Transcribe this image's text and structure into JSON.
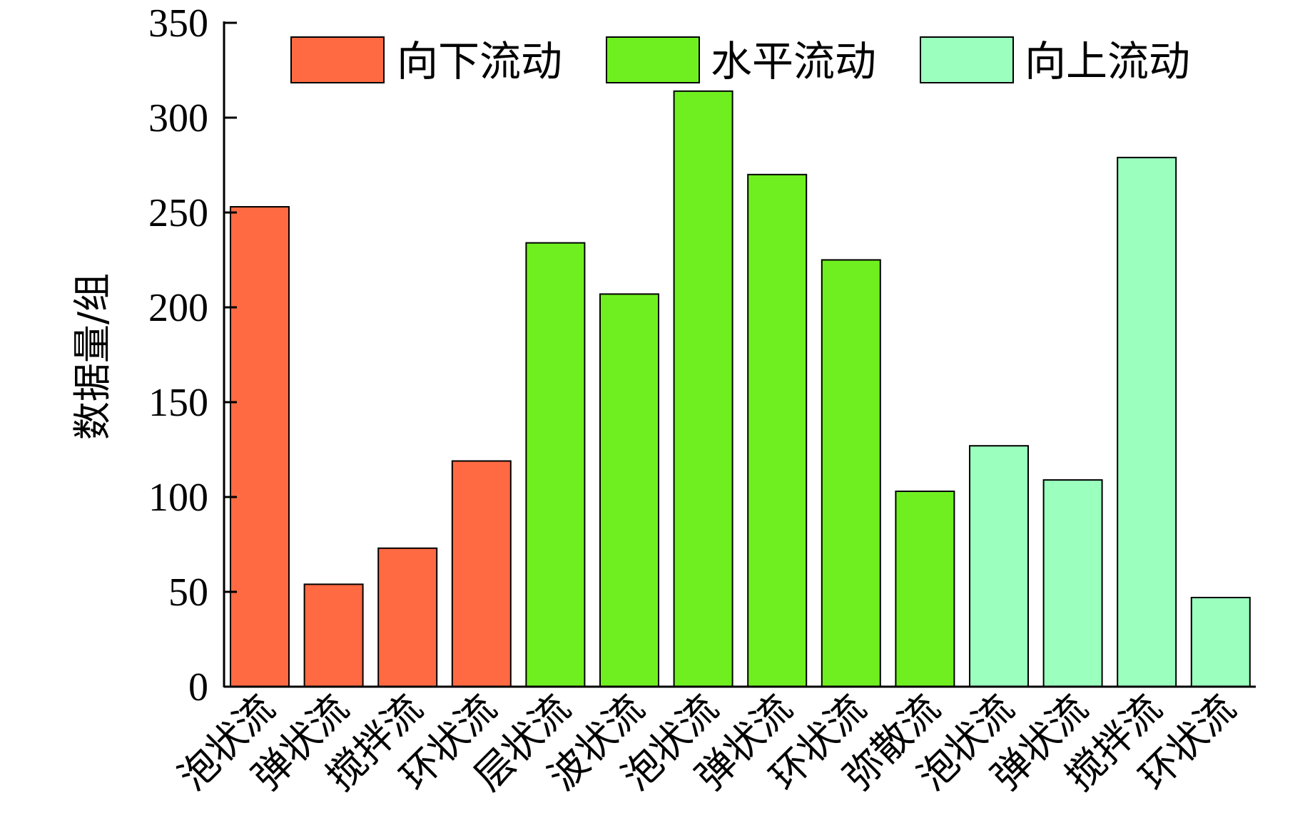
{
  "chart_data": {
    "type": "bar",
    "ylabel": "数据量/组",
    "xlabel": "",
    "ylim": [
      0,
      350
    ],
    "yticks": [
      0,
      50,
      100,
      150,
      200,
      250,
      300,
      350
    ],
    "grid": false,
    "legend_position": "top",
    "groups": [
      {
        "name": "向下流动",
        "color": "#ff6a42",
        "categories": [
          "泡状流",
          "弹状流",
          "搅拌流",
          "环状流"
        ],
        "values": [
          253,
          54,
          73,
          119
        ]
      },
      {
        "name": "水平流动",
        "color": "#6fef20",
        "categories": [
          "层状流",
          "波状流",
          "泡状流",
          "弹状流",
          "环状流",
          "弥散流"
        ],
        "values": [
          234,
          207,
          314,
          270,
          225,
          103
        ]
      },
      {
        "name": "向上流动",
        "color": "#9bffbe",
        "categories": [
          "泡状流",
          "弹状流",
          "搅拌流",
          "环状流"
        ],
        "values": [
          127,
          109,
          279,
          47
        ]
      }
    ]
  }
}
